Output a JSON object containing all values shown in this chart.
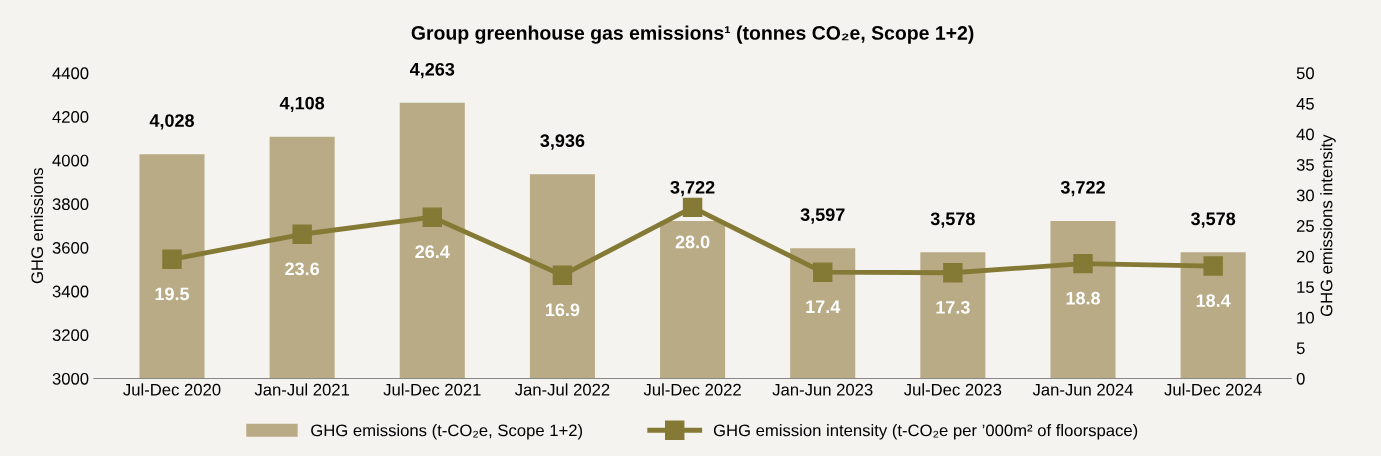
{
  "chart_data": {
    "type": "bar",
    "title": "Group greenhouse gas emissions¹ (tonnes CO₂e, Scope 1+2)",
    "categories": [
      "Jul-Dec 2020",
      "Jan-Jul 2021",
      "Jul-Dec 2021",
      "Jan-Jul 2022",
      "Jul-Dec 2022",
      "Jan-Jun 2023",
      "Jul-Dec 2023",
      "Jan-Jun 2024",
      "Jul-Dec 2024"
    ],
    "series": [
      {
        "name": "GHG emissions (t-CO₂e, Scope 1+2)",
        "color": "#b8ab85",
        "values": [
          4028,
          4108,
          4263,
          3936,
          3722,
          3597,
          3578,
          3722,
          3578
        ],
        "value_labels": [
          "4,028",
          "4,108",
          "4,263",
          "3,936",
          "3,722",
          "3,597",
          "3,578",
          "3,722",
          "3,578"
        ]
      },
      {
        "name": "GHG emission intensity (t-CO₂e per ’000m² of floorspace)",
        "type": "line",
        "axis": "y2",
        "color": "#857a35",
        "values": [
          19.5,
          23.6,
          26.4,
          16.9,
          28.0,
          17.4,
          17.3,
          18.8,
          18.4
        ],
        "value_labels": [
          "19.5",
          "23.6",
          "26.4",
          "16.9",
          "28.0",
          "17.4",
          "17.3",
          "18.8",
          "18.4"
        ]
      }
    ],
    "ylabel": "GHG emissions",
    "y2label": "GHG emissions intensity",
    "ylim": [
      3000,
      4400
    ],
    "yticks": [
      3000,
      3200,
      3400,
      3600,
      3800,
      4000,
      4200,
      4400
    ],
    "y2lim": [
      0,
      50
    ],
    "y2ticks": [
      0,
      5,
      10,
      15,
      20,
      25,
      30,
      35,
      40,
      45,
      50
    ],
    "marker": "square",
    "line_style": "solid",
    "grid": false,
    "legend": "bottom"
  }
}
